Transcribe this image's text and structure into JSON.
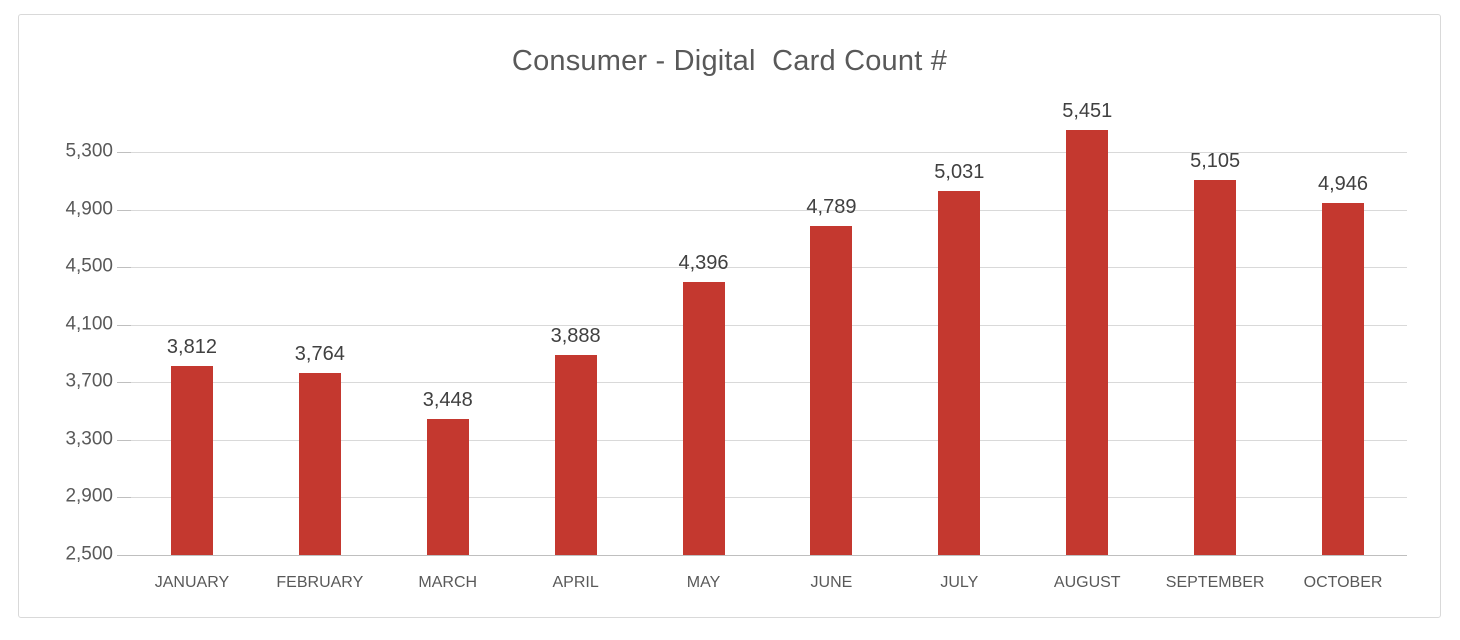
{
  "chart_data": {
    "type": "bar",
    "title": "Consumer - Digital  Card Count #",
    "categories": [
      "JANUARY",
      "FEBRUARY",
      "MARCH",
      "APRIL",
      "MAY",
      "JUNE",
      "JULY",
      "AUGUST",
      "SEPTEMBER",
      "OCTOBER"
    ],
    "values": [
      3812,
      3764,
      3448,
      3888,
      4396,
      4789,
      5031,
      5451,
      5105,
      4946
    ],
    "value_labels": [
      "3,812",
      "3,764",
      "3,448",
      "3,888",
      "4,396",
      "4,789",
      "5,031",
      "5,451",
      "5,105",
      "4,946"
    ],
    "y_ticks": [
      5300,
      4900,
      4500,
      4100,
      3700,
      3300,
      2900,
      2500
    ],
    "y_tick_labels": [
      "5,300",
      "4,900",
      "4,500",
      "4,100",
      "3,700",
      "3,300",
      "2,900",
      "2,500"
    ],
    "ylim": [
      2500,
      5300
    ],
    "xlabel": "",
    "ylabel": "",
    "grid": true,
    "legend": "none",
    "colors": {
      "bar": "#C4382F",
      "title_text": "#595959",
      "value_label_text": "#404040",
      "axis_label_text": "#595959",
      "gridline": "#D9D9D9",
      "axis_line": "#BFBFBF",
      "frame_border": "#D9D9D9",
      "background": "#FFFFFF"
    }
  }
}
